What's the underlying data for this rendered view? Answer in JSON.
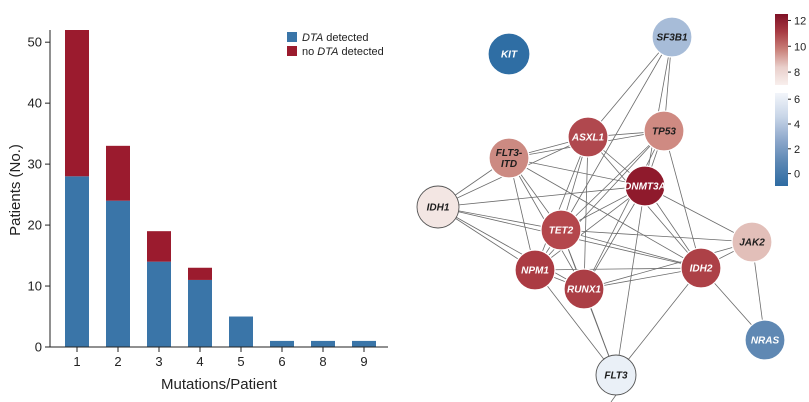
{
  "chart_data": [
    {
      "type": "bar",
      "stacked": true,
      "categories": [
        "1",
        "2",
        "3",
        "4",
        "5",
        "6",
        "8",
        "9"
      ],
      "series": [
        {
          "name": "DTA detected",
          "name_italic": "DTA",
          "name_rest": " detected",
          "color": "#3a75a8",
          "values": [
            28,
            24,
            14,
            11,
            5,
            1,
            1,
            1
          ]
        },
        {
          "name": "no DTA detected",
          "name_pre": "no ",
          "name_italic": "DTA",
          "name_rest": " detected",
          "color": "#9b1b2e",
          "values": [
            24,
            9,
            5,
            2,
            0,
            0,
            0,
            0
          ]
        }
      ],
      "xlabel": "Mutations/Patient",
      "ylabel": "Patients (No.)",
      "ylim": [
        0,
        52
      ],
      "yticks": [
        "0",
        "10",
        "20",
        "30",
        "40",
        "50"
      ],
      "legend_position": "top-right",
      "grid": false
    },
    {
      "type": "network",
      "nodes": [
        {
          "id": "KIT",
          "label_lines": [
            "KIT"
          ],
          "value": -1,
          "color": "#2f6ea4",
          "label_color": "#ffffff"
        },
        {
          "id": "SF3B1",
          "label_lines": [
            "SF3B1"
          ],
          "value": 3,
          "color": "#a7bcd8",
          "label_color": "#1c1c1c"
        },
        {
          "id": "ASXL1",
          "label_lines": [
            "ASXL1"
          ],
          "value": 11,
          "color": "#b0484e",
          "label_color": "#ffffff"
        },
        {
          "id": "TP53",
          "label_lines": [
            "TP53"
          ],
          "value": 8,
          "color": "#cf8a82",
          "label_color": "#1c1c1c"
        },
        {
          "id": "FLT3-ITD",
          "label_lines": [
            "FLT3-",
            "ITD"
          ],
          "value": 8,
          "color": "#cc8a82",
          "label_color": "#1c1c1c"
        },
        {
          "id": "DNMT3A",
          "label_lines": [
            "DNMT3A"
          ],
          "value": 12,
          "color": "#8f1a2c",
          "label_color": "#ffffff"
        },
        {
          "id": "IDH1",
          "label_lines": [
            "IDH1"
          ],
          "value": 7,
          "color": "#f3e6e3",
          "label_color": "#1c1c1c"
        },
        {
          "id": "TET2",
          "label_lines": [
            "TET2"
          ],
          "value": 11,
          "color": "#b4474c",
          "label_color": "#ffffff"
        },
        {
          "id": "JAK2",
          "label_lines": [
            "JAK2"
          ],
          "value": 8,
          "color": "#e2bfb9",
          "label_color": "#1c1c1c"
        },
        {
          "id": "NPM1",
          "label_lines": [
            "NPM1"
          ],
          "value": 11,
          "color": "#ab3b43",
          "label_color": "#ffffff"
        },
        {
          "id": "IDH2",
          "label_lines": [
            "IDH2"
          ],
          "value": 11,
          "color": "#ad4147",
          "label_color": "#ffffff"
        },
        {
          "id": "RUNX1",
          "label_lines": [
            "RUNX1"
          ],
          "value": 11,
          "color": "#ab3e45",
          "label_color": "#ffffff"
        },
        {
          "id": "NRAS",
          "label_lines": [
            "NRAS"
          ],
          "value": 1,
          "color": "#5f88b3",
          "label_color": "#ffffff"
        },
        {
          "id": "FLT3",
          "label_lines": [
            "FLT3"
          ],
          "value": 6,
          "color": "#eaf0f7",
          "label_color": "#1c1c1c"
        }
      ],
      "edges": [
        [
          "SF3B1",
          "ASXL1"
        ],
        [
          "SF3B1",
          "TP53"
        ],
        [
          "SF3B1",
          "TET2"
        ],
        [
          "SF3B1",
          "DNMT3A"
        ],
        [
          "ASXL1",
          "TP53"
        ],
        [
          "ASXL1",
          "FLT3-ITD"
        ],
        [
          "ASXL1",
          "DNMT3A"
        ],
        [
          "ASXL1",
          "IDH1"
        ],
        [
          "ASXL1",
          "TET2"
        ],
        [
          "ASXL1",
          "NPM1"
        ],
        [
          "ASXL1",
          "RUNX1"
        ],
        [
          "ASXL1",
          "IDH2"
        ],
        [
          "TP53",
          "FLT3-ITD"
        ],
        [
          "TP53",
          "DNMT3A"
        ],
        [
          "TP53",
          "TET2"
        ],
        [
          "TP53",
          "NPM1"
        ],
        [
          "TP53",
          "RUNX1"
        ],
        [
          "TP53",
          "IDH2"
        ],
        [
          "FLT3-ITD",
          "DNMT3A"
        ],
        [
          "FLT3-ITD",
          "IDH1"
        ],
        [
          "FLT3-ITD",
          "TET2"
        ],
        [
          "FLT3-ITD",
          "NPM1"
        ],
        [
          "FLT3-ITD",
          "RUNX1"
        ],
        [
          "FLT3-ITD",
          "IDH2"
        ],
        [
          "DNMT3A",
          "IDH1"
        ],
        [
          "DNMT3A",
          "TET2"
        ],
        [
          "DNMT3A",
          "NPM1"
        ],
        [
          "DNMT3A",
          "RUNX1"
        ],
        [
          "DNMT3A",
          "IDH2"
        ],
        [
          "DNMT3A",
          "JAK2"
        ],
        [
          "DNMT3A",
          "FLT3"
        ],
        [
          "IDH1",
          "TET2"
        ],
        [
          "IDH1",
          "NPM1"
        ],
        [
          "IDH1",
          "RUNX1"
        ],
        [
          "IDH1",
          "IDH2"
        ],
        [
          "TET2",
          "NPM1"
        ],
        [
          "TET2",
          "RUNX1"
        ],
        [
          "TET2",
          "IDH2"
        ],
        [
          "TET2",
          "JAK2"
        ],
        [
          "TET2",
          "FLT3"
        ],
        [
          "NPM1",
          "RUNX1"
        ],
        [
          "NPM1",
          "IDH2"
        ],
        [
          "NPM1",
          "FLT3"
        ],
        [
          "RUNX1",
          "IDH2"
        ],
        [
          "RUNX1",
          "FLT3"
        ],
        [
          "RUNX1",
          "JAK2"
        ],
        [
          "IDH2",
          "JAK2"
        ],
        [
          "IDH2",
          "FLT3"
        ],
        [
          "JAK2",
          "NRAS"
        ],
        [
          "NRAS",
          "IDH2"
        ]
      ],
      "colorscale": {
        "red_ticks": [
          "12",
          "10",
          "8"
        ],
        "red_range": [
          7,
          12.5
        ],
        "blue_ticks": [
          "6",
          "4",
          "2",
          "0"
        ],
        "blue_range": [
          -1,
          6.5
        ],
        "red_colors": [
          "#7f1126",
          "#a83b43",
          "#c98079",
          "#e9cfcb",
          "#f8efed"
        ],
        "blue_colors": [
          "#f2f5fa",
          "#c9d6e8",
          "#8fa9cc",
          "#5a86b3",
          "#2e6ba2"
        ]
      }
    }
  ]
}
